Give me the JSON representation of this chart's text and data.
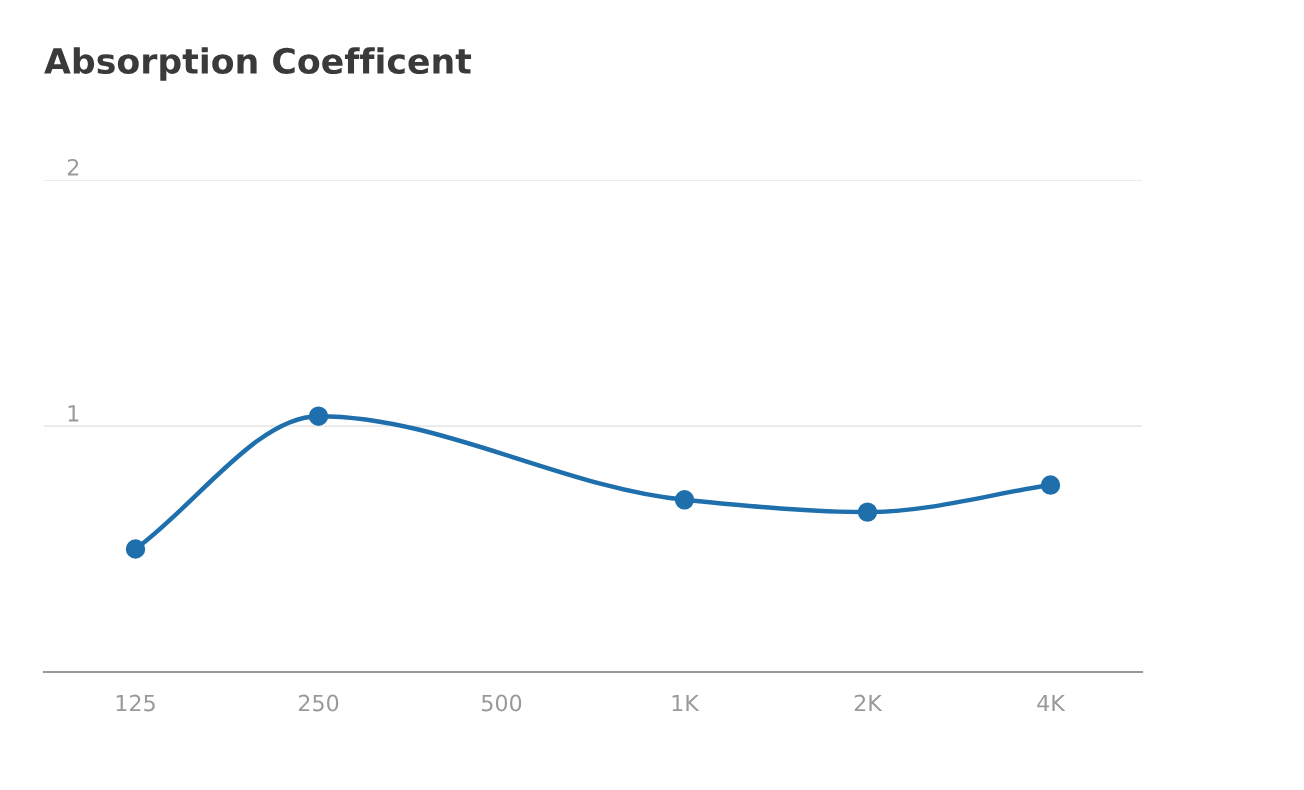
{
  "chart_data": {
    "type": "line",
    "title": "Absorption Coefficent",
    "categories": [
      "125",
      "250",
      "500",
      "1K",
      "2K",
      "4K"
    ],
    "series": [
      {
        "color": "#1f6fad",
        "values": [
          0.5,
          1.04,
          null,
          0.7,
          0.65,
          0.76
        ]
      }
    ],
    "ylim": [
      0,
      2
    ],
    "yticks": [
      {
        "value": 0,
        "label": null
      },
      1,
      2
    ],
    "grid": "y",
    "marker": "circle",
    "line_style": "solid"
  }
}
